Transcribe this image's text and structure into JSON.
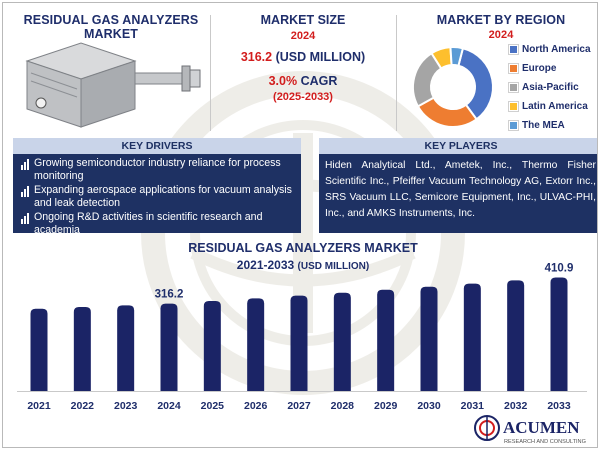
{
  "header": {
    "market_title": "RESIDUAL GAS ANALYZERS MARKET",
    "size_title": "MARKET SIZE",
    "size_year": "2024",
    "size_value": "316.2",
    "size_unit": " (USD MILLION)",
    "cagr_value": "3.0%",
    "cagr_label": " CAGR",
    "cagr_period": "(2025-2033)",
    "region_title": "MARKET BY REGION",
    "region_year": "2024"
  },
  "region_chart": {
    "type": "pie",
    "style": "donut",
    "slices": [
      {
        "label": "North America",
        "value": 36,
        "color": "#4a72c4"
      },
      {
        "label": "Europe",
        "value": 27,
        "color": "#ee7d31"
      },
      {
        "label": "Asia-Pacific",
        "value": 24,
        "color": "#a5a5a5"
      },
      {
        "label": "Latin America",
        "value": 8,
        "color": "#fdbf2d"
      },
      {
        "label": "The MEA",
        "value": 5,
        "color": "#5b9bd5"
      }
    ]
  },
  "drivers": {
    "title": "KEY DRIVERS",
    "items": [
      "Growing semiconductor industry reliance for process monitoring",
      "Expanding aerospace applications for vacuum analysis and leak detection",
      "Ongoing R&D activities in scientific research and academia"
    ]
  },
  "players": {
    "title": "KEY PLAYERS",
    "text": "Hiden Analytical Ltd., Ametek, Inc., Thermo Fisher Scientific Inc., Pfeiffer Vacuum Technology AG, Extorr Inc., SRS Vacuum LLC, Semicore Equipment, Inc., ULVAC-PHI, Inc., and AMKS Instruments, Inc."
  },
  "chart_data": {
    "type": "bar",
    "title": "RESIDUAL GAS ANALYZERS MARKET",
    "subtitle_main": "2021-2033",
    "subtitle_unit": "(USD MILLION)",
    "categories": [
      "2021",
      "2022",
      "2023",
      "2024",
      "2025",
      "2026",
      "2027",
      "2028",
      "2029",
      "2030",
      "2031",
      "2032",
      "2033"
    ],
    "values": [
      298,
      304,
      310,
      316.2,
      325.7,
      335.5,
      345.5,
      355.9,
      366.6,
      377.6,
      388.9,
      400.6,
      410.9
    ],
    "data_labels": [
      {
        "index": 3,
        "text": "316.2"
      },
      {
        "index": 12,
        "text": "410.9"
      }
    ],
    "ylim": [
      0,
      440
    ],
    "grid": false,
    "bar_color": "#1b2466"
  },
  "logo": {
    "name": "ACUMEN",
    "tagline": "RESEARCH AND CONSULTING"
  }
}
